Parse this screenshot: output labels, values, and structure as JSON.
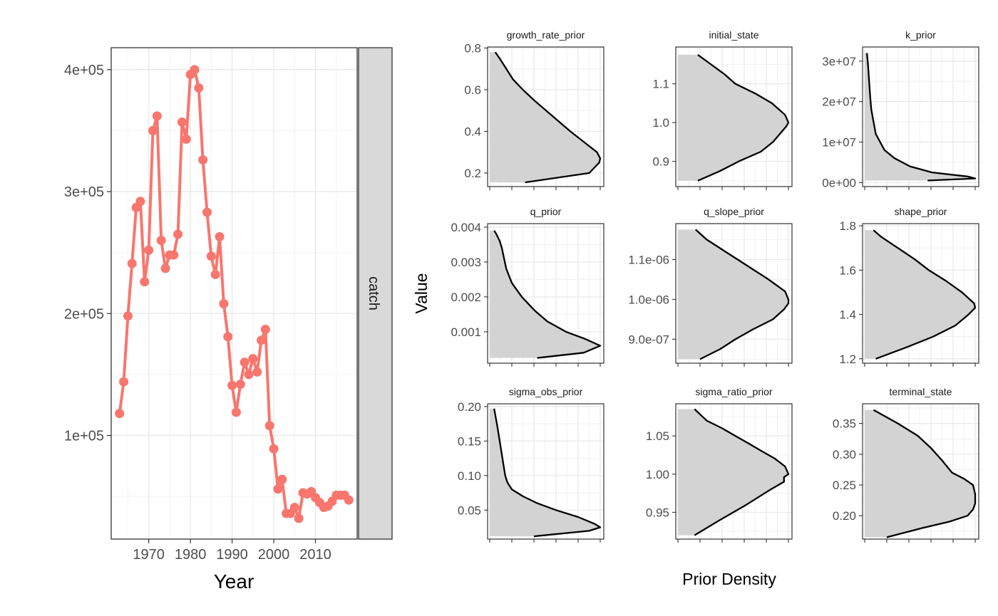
{
  "chart_data": [
    {
      "type": "line",
      "facet_label": "catch",
      "xlabel": "Year",
      "ylabel": "",
      "color": "#F8766D",
      "xlim": [
        1961,
        2020
      ],
      "ylim": [
        15000,
        418000
      ],
      "x_ticks": [
        1970,
        1980,
        1990,
        2000,
        2010
      ],
      "y_ticks": [
        100000,
        200000,
        300000,
        400000
      ],
      "y_tick_labels": [
        "1e+05",
        "2e+05",
        "3e+05",
        "4e+05"
      ],
      "grid": true,
      "x": [
        1963,
        1964,
        1965,
        1966,
        1967,
        1968,
        1969,
        1970,
        1971,
        1972,
        1973,
        1974,
        1975,
        1976,
        1977,
        1978,
        1979,
        1980,
        1981,
        1982,
        1983,
        1984,
        1985,
        1986,
        1987,
        1988,
        1989,
        1990,
        1991,
        1992,
        1993,
        1994,
        1995,
        1996,
        1997,
        1998,
        1999,
        2000,
        2001,
        2002,
        2003,
        2004,
        2005,
        2006,
        2007,
        2008,
        2009,
        2010,
        2011,
        2012,
        2013,
        2014,
        2015,
        2016,
        2017,
        2018
      ],
      "y": [
        118000,
        144000,
        198000,
        241000,
        287000,
        292000,
        226000,
        252000,
        350000,
        362000,
        260000,
        237000,
        248000,
        248000,
        265000,
        357000,
        343000,
        396000,
        400000,
        385000,
        326000,
        283000,
        247000,
        232000,
        263000,
        208000,
        181000,
        141000,
        119000,
        142000,
        160000,
        150000,
        163000,
        152000,
        178000,
        187000,
        108000,
        89000,
        56000,
        64000,
        36000,
        36000,
        41000,
        32000,
        53000,
        52000,
        54000,
        49000,
        45000,
        41000,
        42000,
        46000,
        51000,
        51000,
        51000,
        47000
      ]
    },
    {
      "type": "area",
      "facets": [
        {
          "label": "growth_rate_prior",
          "ylim": [
            0.135,
            0.805
          ],
          "y_ticks": [
            0.2,
            0.4,
            0.6,
            0.8
          ],
          "y_tick_labels": [
            "0.2",
            "0.4",
            "0.6",
            "0.8"
          ],
          "v": [
            0.155,
            0.2,
            0.25,
            0.27,
            0.3,
            0.35,
            0.4,
            0.45,
            0.5,
            0.55,
            0.6,
            0.65,
            0.7,
            0.75,
            0.78
          ],
          "d": [
            0.32,
            0.9,
            0.99,
            1.0,
            0.97,
            0.85,
            0.73,
            0.62,
            0.51,
            0.4,
            0.3,
            0.21,
            0.15,
            0.09,
            0.05
          ]
        },
        {
          "label": "initial_state",
          "ylim": [
            0.835,
            1.195
          ],
          "y_ticks": [
            0.9,
            1.0,
            1.1
          ],
          "y_tick_labels": [
            "0.9",
            "1.0",
            "1.1"
          ],
          "v": [
            0.85,
            0.875,
            0.9,
            0.925,
            0.95,
            0.97,
            0.99,
            1.0,
            1.02,
            1.05,
            1.075,
            1.1,
            1.125,
            1.15,
            1.175
          ],
          "d": [
            0.18,
            0.38,
            0.55,
            0.75,
            0.86,
            0.92,
            0.98,
            1.0,
            0.97,
            0.85,
            0.7,
            0.52,
            0.42,
            0.3,
            0.18
          ]
        },
        {
          "label": "k_prior",
          "ylim": [
            -1000000,
            33500000
          ],
          "y_ticks": [
            0,
            10000000,
            20000000,
            30000000
          ],
          "y_tick_labels": [
            "0e+00",
            "1e+07",
            "2e+07",
            "3e+07"
          ],
          "v": [
            500000,
            1000000,
            1500000,
            2500000,
            4000000,
            6000000,
            8000000,
            10000000,
            12000000,
            15000000,
            18000000,
            21000000,
            25000000,
            29000000,
            32000000
          ],
          "d": [
            0.57,
            1.0,
            0.93,
            0.61,
            0.41,
            0.27,
            0.18,
            0.14,
            0.1,
            0.08,
            0.06,
            0.05,
            0.04,
            0.03,
            0.02
          ]
        },
        {
          "label": "q_prior",
          "ylim": [
            0.0001,
            0.0041
          ],
          "y_ticks": [
            0.001,
            0.002,
            0.003,
            0.004
          ],
          "y_tick_labels": [
            "0.001",
            "0.002",
            "0.003",
            "0.004"
          ],
          "v": [
            0.00025,
            0.0004,
            0.0006,
            0.0008,
            0.001,
            0.0013,
            0.0016,
            0.002,
            0.0024,
            0.0028,
            0.0031,
            0.0034,
            0.0036,
            0.0038,
            0.0039
          ],
          "d": [
            0.43,
            0.85,
            1.0,
            0.86,
            0.69,
            0.52,
            0.41,
            0.29,
            0.2,
            0.15,
            0.13,
            0.11,
            0.09,
            0.06,
            0.04
          ]
        },
        {
          "label": "q_slope_prior",
          "ylim": [
            8.4e-07,
            1.19e-06
          ],
          "y_ticks": [
            9e-07,
            1e-06,
            1.1e-06
          ],
          "y_tick_labels": [
            "9.0e-07",
            "1.0e-06",
            "1.1e-06"
          ],
          "v": [
            8.5e-07,
            8.75e-07,
            9e-07,
            9.25e-07,
            9.5e-07,
            9.75e-07,
            9.9e-07,
            1e-06,
            1.02e-06,
            1.05e-06,
            1.075e-06,
            1.1e-06,
            1.125e-06,
            1.15e-06,
            1.175e-06
          ],
          "d": [
            0.2,
            0.38,
            0.52,
            0.68,
            0.86,
            0.96,
            1.0,
            1.0,
            0.97,
            0.82,
            0.68,
            0.54,
            0.4,
            0.26,
            0.16
          ]
        },
        {
          "label": "shape_prior",
          "ylim": [
            1.18,
            1.81
          ],
          "y_ticks": [
            1.2,
            1.4,
            1.6,
            1.8
          ],
          "y_tick_labels": [
            "1.2",
            "1.4",
            "1.6",
            "1.8"
          ],
          "v": [
            1.2,
            1.25,
            1.3,
            1.35,
            1.4,
            1.43,
            1.45,
            1.5,
            1.55,
            1.6,
            1.65,
            1.7,
            1.75,
            1.78
          ],
          "d": [
            0.1,
            0.37,
            0.62,
            0.82,
            0.94,
            1.0,
            0.99,
            0.88,
            0.74,
            0.58,
            0.45,
            0.3,
            0.15,
            0.08
          ]
        },
        {
          "label": "sigma_obs_prior",
          "ylim": [
            0.008,
            0.204
          ],
          "y_ticks": [
            0.05,
            0.1,
            0.15,
            0.2
          ],
          "y_tick_labels": [
            "0.05",
            "0.10",
            "0.15",
            "0.20"
          ],
          "v": [
            0.012,
            0.02,
            0.025,
            0.03,
            0.04,
            0.05,
            0.06,
            0.07,
            0.08,
            0.09,
            0.1,
            0.12,
            0.14,
            0.17,
            0.197
          ],
          "d": [
            0.4,
            0.9,
            1.0,
            0.95,
            0.8,
            0.6,
            0.43,
            0.3,
            0.2,
            0.16,
            0.14,
            0.12,
            0.1,
            0.07,
            0.04
          ]
        },
        {
          "label": "sigma_ratio_prior",
          "ylim": [
            0.915,
            1.092
          ],
          "y_ticks": [
            0.95,
            1.0,
            1.05
          ],
          "y_tick_labels": [
            "0.95",
            "1.00",
            "1.05"
          ],
          "v": [
            0.92,
            0.94,
            0.96,
            0.98,
            0.99,
            0.996,
            1.0,
            1.01,
            1.02,
            1.03,
            1.04,
            1.05,
            1.06,
            1.07,
            1.085
          ],
          "d": [
            0.15,
            0.38,
            0.62,
            0.84,
            0.96,
            0.96,
            1.0,
            0.97,
            0.88,
            0.76,
            0.64,
            0.52,
            0.4,
            0.26,
            0.15
          ]
        },
        {
          "label": "terminal_state",
          "ylim": [
            0.162,
            0.382
          ],
          "y_ticks": [
            0.2,
            0.25,
            0.3,
            0.35
          ],
          "y_tick_labels": [
            "0.20",
            "0.25",
            "0.30",
            "0.35"
          ],
          "v": [
            0.165,
            0.18,
            0.19,
            0.2,
            0.21,
            0.22,
            0.235,
            0.25,
            0.26,
            0.27,
            0.29,
            0.31,
            0.33,
            0.35,
            0.372
          ],
          "d": [
            0.2,
            0.52,
            0.76,
            0.93,
            0.98,
            1.0,
            1.0,
            0.98,
            0.9,
            0.79,
            0.7,
            0.6,
            0.48,
            0.3,
            0.08
          ]
        }
      ],
      "xlabel": "Prior Density",
      "ylabel": "Value",
      "fill": "#D3D3D3",
      "line_color": "#000000",
      "grid": true
    }
  ]
}
